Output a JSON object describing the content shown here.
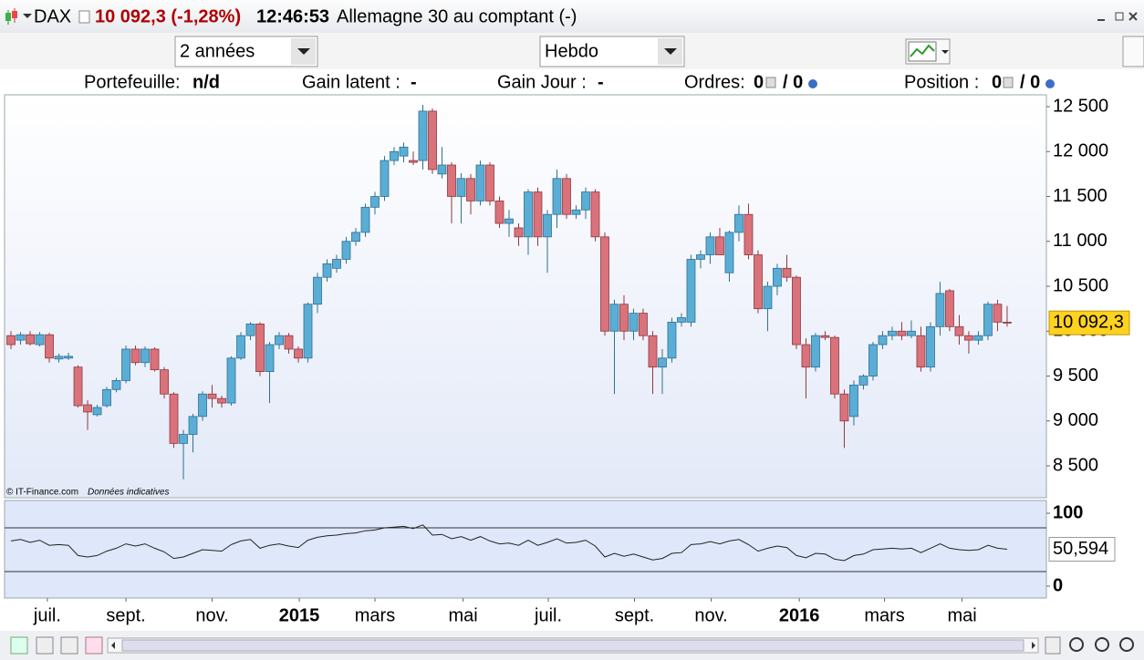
{
  "header": {
    "symbol": "DAX",
    "quote": "10 092,3 (-1,28%)",
    "time": "12:46:53",
    "name": "Allemagne 30 au comptant (-)"
  },
  "toolbar": {
    "period": "2 années",
    "interval": "Hebdo"
  },
  "account": {
    "portfolio_label": "Portefeuille:",
    "portfolio_value": "n/d",
    "latent_label": "Gain latent :",
    "latent_value": "-",
    "day_label": "Gain Jour :",
    "day_value": "-",
    "orders_label": "Ordres:",
    "orders_value": "0",
    "orders_total": "/ 0",
    "position_label": "Position :",
    "position_value": "0",
    "position_total": "/ 0"
  },
  "footer": {
    "copyright": "© IT-Finance.com",
    "note": "Données indicatives"
  },
  "chart_data": [
    {
      "type": "candlestick",
      "up_color": "#5aaed6",
      "down_color": "#d9727a",
      "up_edge": "#2f6f92",
      "down_edge": "#8e3840",
      "x": [
        0,
        1,
        2,
        3,
        4,
        5,
        6,
        7,
        8,
        9,
        10,
        11,
        12,
        13,
        14,
        15,
        16,
        17,
        18,
        19,
        20,
        21,
        22,
        23,
        24,
        25,
        26,
        27,
        28,
        29,
        30,
        31,
        32,
        33,
        34,
        35,
        36,
        37,
        38,
        39,
        40,
        41,
        42,
        43,
        44,
        45,
        46,
        47,
        48,
        49,
        50,
        51,
        52,
        53,
        54,
        55,
        56,
        57,
        58,
        59,
        60,
        61,
        62,
        63,
        64,
        65,
        66,
        67,
        68,
        69,
        70,
        71,
        72,
        73,
        74,
        75,
        76,
        77,
        78,
        79,
        80,
        81,
        82,
        83,
        84,
        85,
        86,
        87,
        88,
        89,
        90,
        91,
        92,
        93,
        94,
        95,
        96,
        97,
        98,
        99,
        100,
        101,
        102,
        103,
        104
      ],
      "open": [
        9950,
        9900,
        9960,
        9850,
        9960,
        9690,
        9700,
        9600,
        9180,
        9070,
        9170,
        9350,
        9450,
        9800,
        9650,
        9800,
        9570,
        9300,
        8750,
        8850,
        9050,
        9300,
        9250,
        9200,
        9700,
        9950,
        10080,
        9550,
        9850,
        9950,
        9800,
        9700,
        10300,
        10600,
        10700,
        10800,
        11000,
        11100,
        11380,
        11500,
        11900,
        11950,
        11900,
        11900,
        12450,
        11750,
        11850,
        11500,
        11700,
        11450,
        11850,
        11450,
        11200,
        11150,
        11050,
        11550,
        11050,
        11300,
        11700,
        11300,
        11350,
        11550,
        11050,
        10000,
        10300,
        10000,
        10200,
        9950,
        9600,
        9700,
        10100,
        10100,
        10800,
        10850,
        11050,
        10650,
        11100,
        11300,
        10850,
        10250,
        10500,
        10700,
        10600,
        9850,
        9600,
        9950,
        9930,
        9300,
        9050,
        9400,
        9500,
        9850,
        9950,
        10000,
        9950,
        9950,
        9600,
        10050,
        10450,
        10050,
        9950,
        9900,
        9950,
        10300,
        10100
      ],
      "high": [
        10000,
        9990,
        10000,
        9990,
        9980,
        9750,
        9760,
        9620,
        9230,
        9180,
        9380,
        9480,
        9840,
        9840,
        9830,
        9820,
        9600,
        9320,
        8900,
        9080,
        9330,
        9400,
        9280,
        9720,
        9990,
        10100,
        10100,
        9880,
        9990,
        9980,
        9830,
        10320,
        10650,
        10800,
        10850,
        11050,
        11150,
        11420,
        11550,
        11950,
        12050,
        12100,
        12000,
        12520,
        12480,
        12050,
        11880,
        11760,
        11750,
        11900,
        11880,
        11500,
        11350,
        11200,
        11580,
        11600,
        11350,
        11800,
        11750,
        11400,
        11600,
        11580,
        11100,
        10350,
        10400,
        10250,
        10250,
        10000,
        9800,
        10150,
        10200,
        10850,
        10900,
        11100,
        11150,
        11120,
        11400,
        11420,
        10900,
        10550,
        10750,
        10850,
        10620,
        9920,
        9980,
        10000,
        9950,
        9350,
        9450,
        9520,
        9880,
        10000,
        10050,
        10100,
        10120,
        10050,
        10100,
        10550,
        10470,
        10180,
        10000,
        10000,
        10330,
        10350,
        10280
      ],
      "low": [
        9800,
        9850,
        9840,
        9830,
        9650,
        9650,
        9680,
        9150,
        8900,
        9050,
        9150,
        9320,
        9420,
        9620,
        9600,
        9550,
        9250,
        8700,
        8350,
        8650,
        9000,
        9150,
        9150,
        9170,
        9680,
        9900,
        9500,
        9200,
        9800,
        9750,
        9650,
        9650,
        10200,
        10550,
        10650,
        10750,
        10950,
        11050,
        11300,
        11450,
        11850,
        11880,
        11850,
        11800,
        11750,
        11700,
        11200,
        11200,
        11300,
        11400,
        11400,
        11150,
        11050,
        10950,
        10850,
        10950,
        10650,
        11150,
        11250,
        11250,
        11250,
        11000,
        9950,
        9300,
        9900,
        9900,
        9900,
        9300,
        9300,
        9650,
        10050,
        10050,
        10700,
        10750,
        10850,
        10550,
        11000,
        10800,
        10200,
        10000,
        10400,
        10550,
        9800,
        9250,
        9550,
        9900,
        9250,
        8700,
        8950,
        9350,
        9450,
        9800,
        9900,
        9900,
        9920,
        9550,
        9550,
        9950,
        10000,
        9850,
        9750,
        9850,
        9900,
        10000,
        10050
      ],
      "close": [
        9850,
        9960,
        9860,
        9960,
        9700,
        9720,
        9720,
        9170,
        9100,
        9150,
        9350,
        9450,
        9800,
        9650,
        9800,
        9570,
        9300,
        8750,
        8850,
        9050,
        9300,
        9250,
        9200,
        9700,
        9950,
        10080,
        9550,
        9850,
        9950,
        9800,
        9700,
        10300,
        10600,
        10750,
        10800,
        11000,
        11100,
        11380,
        11500,
        11900,
        12000,
        12050,
        11880,
        12450,
        11800,
        11850,
        11500,
        11700,
        11450,
        11850,
        11450,
        11200,
        11250,
        11050,
        11550,
        11050,
        11300,
        11700,
        11300,
        11350,
        11550,
        11050,
        10000,
        10300,
        10000,
        10200,
        9950,
        9600,
        9700,
        10100,
        10150,
        10800,
        10850,
        11050,
        10850,
        11100,
        11300,
        10850,
        10250,
        10500,
        10700,
        10600,
        9850,
        9600,
        9950,
        9930,
        9300,
        9000,
        9400,
        9500,
        9850,
        9950,
        10000,
        9950,
        10000,
        9600,
        10050,
        10420,
        10050,
        9950,
        9900,
        9950,
        10300,
        10100,
        10092.3
      ],
      "last_label": {
        "value": 10092.3,
        "label": "10 092,3"
      },
      "xlim": [
        -0.67,
        108.1
      ],
      "xticks": [
        {
          "value": 3.8,
          "label": "juil."
        },
        {
          "value": 12,
          "label": "sept."
        },
        {
          "value": 21,
          "label": "nov."
        },
        {
          "value": 30.1,
          "label": "2015"
        },
        {
          "value": 38,
          "label": "mars"
        },
        {
          "value": 47.2,
          "label": "mai"
        },
        {
          "value": 56.1,
          "label": "juil."
        },
        {
          "value": 65.1,
          "label": "sept."
        },
        {
          "value": 73.1,
          "label": "nov."
        },
        {
          "value": 82.3,
          "label": "2016"
        },
        {
          "value": 91.2,
          "label": "mars"
        },
        {
          "value": 99.3,
          "label": "mai"
        }
      ],
      "ylim": [
        8145,
        12632
      ],
      "yticks": [
        {
          "value": 8500,
          "label": "8 500"
        },
        {
          "value": 9000,
          "label": "9 000"
        },
        {
          "value": 9500,
          "label": "9 500"
        },
        {
          "value": 10000,
          "label": "10 000"
        },
        {
          "value": 10500,
          "label": "10 500"
        },
        {
          "value": 11000,
          "label": "11 000"
        },
        {
          "value": 11500,
          "label": "11 500"
        },
        {
          "value": 12000,
          "label": "12 000"
        },
        {
          "value": 12500,
          "label": "12 500"
        }
      ]
    },
    {
      "type": "line",
      "color": "#222222",
      "x": [
        0,
        1,
        2,
        3,
        4,
        5,
        6,
        7,
        8,
        9,
        10,
        11,
        12,
        13,
        14,
        15,
        16,
        17,
        18,
        19,
        20,
        21,
        22,
        23,
        24,
        25,
        26,
        27,
        28,
        29,
        30,
        31,
        32,
        33,
        34,
        35,
        36,
        37,
        38,
        39,
        40,
        41,
        42,
        43,
        44,
        45,
        46,
        47,
        48,
        49,
        50,
        51,
        52,
        53,
        54,
        55,
        56,
        57,
        58,
        59,
        60,
        61,
        62,
        63,
        64,
        65,
        66,
        67,
        68,
        69,
        70,
        71,
        72,
        73,
        74,
        75,
        76,
        77,
        78,
        79,
        80,
        81,
        82,
        83,
        84,
        85,
        86,
        87,
        88,
        89,
        90,
        91,
        92,
        93,
        94,
        95,
        96,
        97,
        98,
        99,
        100,
        101,
        102,
        103,
        104
      ],
      "values": [
        62,
        64,
        60,
        63,
        56,
        57,
        56,
        42,
        40,
        42,
        48,
        52,
        58,
        55,
        58,
        52,
        47,
        38,
        40,
        45,
        50,
        49,
        48,
        57,
        62,
        64,
        52,
        56,
        58,
        55,
        53,
        63,
        67,
        69,
        70,
        72,
        73,
        76,
        77,
        80,
        81,
        82,
        79,
        84,
        70,
        71,
        65,
        68,
        63,
        68,
        62,
        58,
        59,
        56,
        63,
        56,
        60,
        65,
        59,
        60,
        63,
        55,
        40,
        45,
        41,
        44,
        40,
        36,
        38,
        45,
        46,
        57,
        58,
        61,
        58,
        62,
        64,
        57,
        48,
        52,
        55,
        53,
        42,
        39,
        45,
        44,
        37,
        35,
        42,
        44,
        50,
        51,
        52,
        51,
        52,
        46,
        52,
        58,
        52,
        50,
        49,
        50,
        56,
        52,
        50.594
      ],
      "last_label": {
        "value": 50.594,
        "label": "50,594"
      },
      "levels": [
        80,
        20
      ],
      "xlim": [
        -0.67,
        108.1
      ],
      "ylim": [
        -16.25,
        117.5
      ],
      "yticks": [
        100,
        0
      ]
    }
  ]
}
